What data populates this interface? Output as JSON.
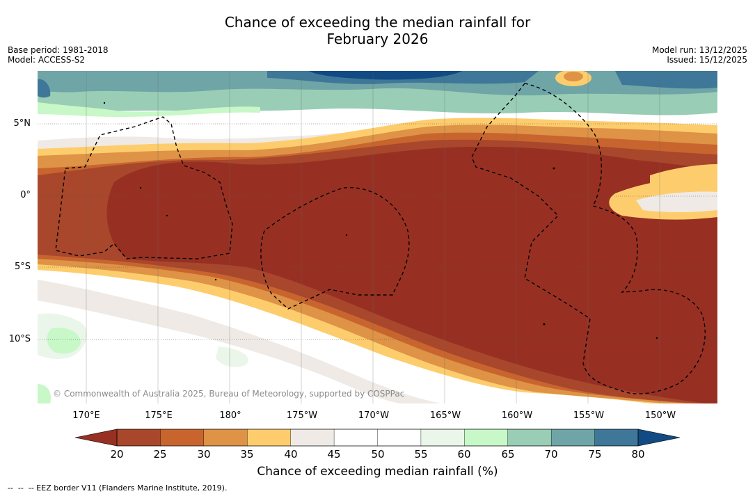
{
  "title": {
    "line1": "Chance of exceeding the median rainfall for",
    "line2": "February 2026"
  },
  "meta_left": {
    "base_period": "Base period: 1981-2018",
    "model": "Model: ACCESS-S2"
  },
  "meta_right": {
    "model_run": "Model run: 13/12/2025",
    "issued": "Issued: 15/12/2025"
  },
  "latitudes": [
    "5°N",
    "0°",
    "5°S",
    "10°S"
  ],
  "longitudes": [
    "170°E",
    "175°E",
    "180°",
    "175°W",
    "170°W",
    "165°W",
    "160°W",
    "155°W",
    "150°W"
  ],
  "copyright": "© Commonwealth of Australia 2025, Bureau of Meteorology, supported by COSPPac",
  "colorbar": {
    "ticks": [
      "20",
      "25",
      "30",
      "35",
      "40",
      "45",
      "50",
      "55",
      "60",
      "65",
      "70",
      "75",
      "80"
    ],
    "label": "Chance of exceeding median rainfall (%)",
    "colors": [
      "#a8472b",
      "#c8652f",
      "#de9346",
      "#fdcd6d",
      "#efeae5",
      "#ffffff",
      "#ffffff",
      "#eaf6e9",
      "#c8f7c8",
      "#99cdb5",
      "#6fa5a6",
      "#3f7798"
    ],
    "under_color": "#973023",
    "over_color": "#124a84"
  },
  "footnote": "--  --  -- EEZ border V11 (Flanders Marine Institute, 2019)."
}
